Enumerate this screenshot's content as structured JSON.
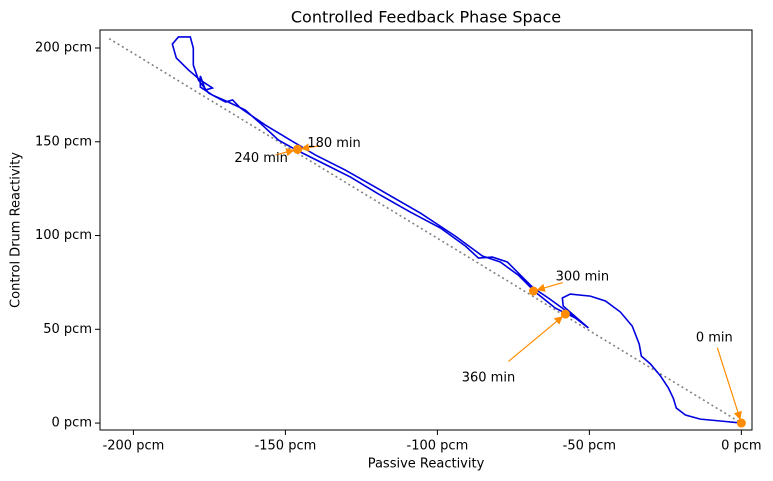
{
  "chart_data": {
    "type": "line",
    "title": "Controlled Feedback Phase Space",
    "xlabel": "Passive Reactivity",
    "ylabel": "Control Drum Reactivity",
    "xlim": [
      -211,
      3.5
    ],
    "ylim": [
      -3.7,
      209.6
    ],
    "xticks": [
      {
        "value": -200,
        "label": "-200 pcm"
      },
      {
        "value": -150,
        "label": "-150 pcm"
      },
      {
        "value": -100,
        "label": "-100 pcm"
      },
      {
        "value": -50,
        "label": "-50 pcm"
      },
      {
        "value": 0,
        "label": "0 pcm"
      }
    ],
    "yticks": [
      {
        "value": 0,
        "label": "0 pcm"
      },
      {
        "value": 50,
        "label": "50 pcm"
      },
      {
        "value": 100,
        "label": "100 pcm"
      },
      {
        "value": 150,
        "label": "150 pcm"
      },
      {
        "value": 200,
        "label": "200 pcm"
      }
    ],
    "series": [
      {
        "color": "#808080",
        "dash": "dotted",
        "x": [
          -208,
          0
        ],
        "values": [
          205,
          0
        ]
      },
      {
        "color": "#0000e0",
        "dash": "solid",
        "x": [
          0,
          -6.9,
          -13.5,
          -18.4,
          -21.4,
          -22.4,
          -24.0,
          -26.6,
          -29.9,
          -32.9,
          -33.6,
          -35.9,
          -39.8,
          -44.7,
          -49.7,
          -56.3,
          -58.9,
          -58.6,
          -50.3,
          -58.9,
          -63.5,
          -68.4,
          -72.7,
          -77.0,
          -81.9,
          -86.5,
          -90.8,
          -99.0,
          -108.9,
          -118.8,
          -128.6,
          -138.5,
          -146.4,
          -152.3,
          -157.6,
          -163.2,
          -168.8,
          -174.0,
          -178.0,
          -178.0,
          -176.3,
          -174.0,
          -178.0,
          -181.9,
          -185.9,
          -187.2,
          -185.2,
          -181.3,
          -180.3,
          -180.3,
          -178.6,
          -175.3,
          -169.7,
          -167.4,
          -164.8,
          -156.6,
          -148.4,
          -140.1,
          -130.3,
          -118.8,
          -105.6,
          -94.1,
          -85.2,
          -79.3,
          -73.4,
          -67.8,
          -61.2,
          -54.6,
          -50.3
        ],
        "values": [
          0,
          1.1,
          2.1,
          4.3,
          8.0,
          13.3,
          18.7,
          25.1,
          31.5,
          35.7,
          42.1,
          51.7,
          59.2,
          65.1,
          67.7,
          68.8,
          66.7,
          62.4,
          50.7,
          61.3,
          66.7,
          72.0,
          78.9,
          85.9,
          88.5,
          88.0,
          94.4,
          104.0,
          112.5,
          121.6,
          131.2,
          139.2,
          145.6,
          150.9,
          158.9,
          166.9,
          171.2,
          174.9,
          179.2,
          185.1,
          177.6,
          178.7,
          182.9,
          188.3,
          194.7,
          202.1,
          205.9,
          205.9,
          200.0,
          190.9,
          182.9,
          176.0,
          171.2,
          172.3,
          168.0,
          158.9,
          150.9,
          142.9,
          134.9,
          124.3,
          112.0,
          99.7,
          89.1,
          85.9,
          78.9,
          69.9,
          61.3,
          56.0,
          50.7
        ]
      }
    ],
    "marker_color": "#ff8c00",
    "annotations": [
      {
        "text": "0 min",
        "x": 0,
        "y": 0,
        "text_x": -8.9,
        "text_y": 45.3
      },
      {
        "text": "180 min",
        "x": -146,
        "y": 146,
        "text_x": -134,
        "text_y": 149
      },
      {
        "text": "240 min",
        "x": -146,
        "y": 146,
        "text_x": -158,
        "text_y": 141
      },
      {
        "text": "300 min",
        "x": -68.4,
        "y": 70.4,
        "text_x": -52.3,
        "text_y": 77.9
      },
      {
        "text": "360 min",
        "x": -57.9,
        "y": 58.1,
        "text_x": -83.2,
        "text_y": 24
      }
    ]
  }
}
